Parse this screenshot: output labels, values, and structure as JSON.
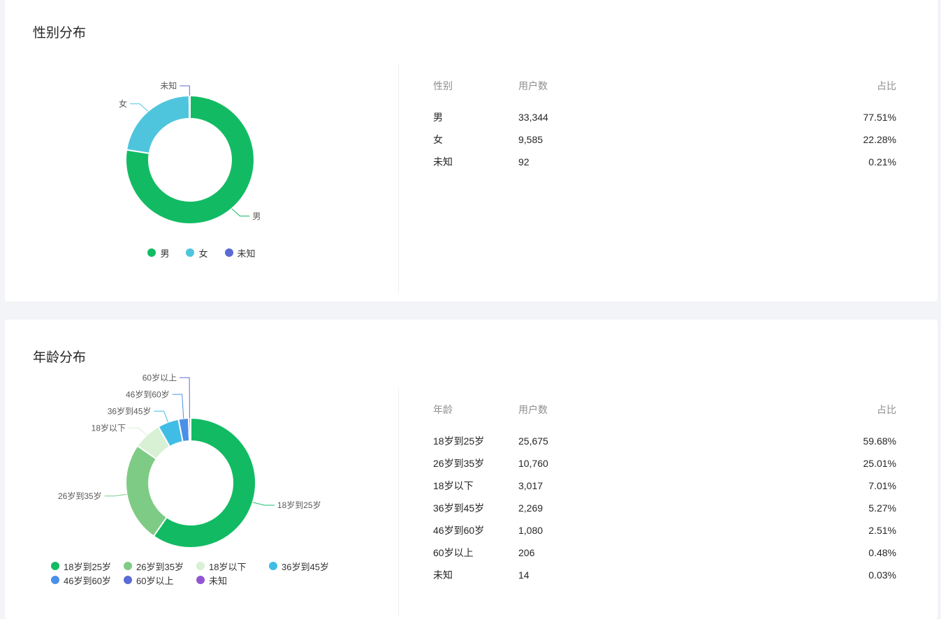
{
  "page": {
    "background_color": "#f2f4f7",
    "card_color": "#ffffff"
  },
  "chart_data": [
    {
      "type": "pie",
      "donut": true,
      "title": "性别分布",
      "categories": [
        "男",
        "女",
        "未知"
      ],
      "values": [
        33344,
        9585,
        92
      ],
      "percents": [
        "77.51%",
        "22.28%",
        "0.21%"
      ],
      "colors": [
        "#12bb63",
        "#4fc5dd",
        "#5a6bd5"
      ],
      "legend_position": "bottom",
      "label_line": true
    },
    {
      "type": "pie",
      "donut": true,
      "title": "年龄分布",
      "categories": [
        "18岁到25岁",
        "26岁到35岁",
        "18岁以下",
        "36岁到45岁",
        "46岁到60岁",
        "60岁以上",
        "未知"
      ],
      "values": [
        25675,
        10760,
        3017,
        2269,
        1080,
        206,
        14
      ],
      "percents": [
        "59.68%",
        "25.01%",
        "7.01%",
        "5.27%",
        "2.51%",
        "0.48%",
        "0.03%"
      ],
      "colors": [
        "#12bb63",
        "#7ecb85",
        "#d8f0d3",
        "#3fbde4",
        "#4b90e8",
        "#5a6bd5",
        "#9155d2"
      ],
      "legend_position": "bottom",
      "label_line": true
    }
  ],
  "sections": [
    {
      "title": "性别分布",
      "table": {
        "headers": [
          "性别",
          "用户数",
          "占比"
        ],
        "rows": [
          [
            "男",
            "33,344",
            "77.51%"
          ],
          [
            "女",
            "9,585",
            "22.28%"
          ],
          [
            "未知",
            "92",
            "0.21%"
          ]
        ]
      }
    },
    {
      "title": "年龄分布",
      "table": {
        "headers": [
          "年龄",
          "用户数",
          "占比"
        ],
        "rows": [
          [
            "18岁到25岁",
            "25,675",
            "59.68%"
          ],
          [
            "26岁到35岁",
            "10,760",
            "25.01%"
          ],
          [
            "18岁以下",
            "3,017",
            "7.01%"
          ],
          [
            "36岁到45岁",
            "2,269",
            "5.27%"
          ],
          [
            "46岁到60岁",
            "1,080",
            "2.51%"
          ],
          [
            "60岁以上",
            "206",
            "0.48%"
          ],
          [
            "未知",
            "14",
            "0.03%"
          ]
        ]
      }
    }
  ]
}
